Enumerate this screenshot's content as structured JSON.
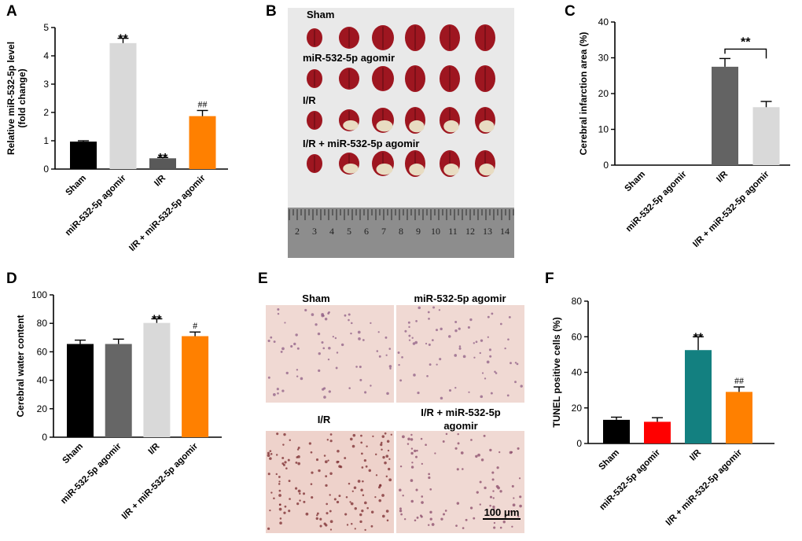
{
  "chart_data": [
    {
      "panel": "A",
      "type": "bar",
      "ylabel": "Relative miR-532-5p level\n(fold change)",
      "ylim": [
        0,
        5
      ],
      "yticks": [
        0,
        1,
        2,
        3,
        4,
        5
      ],
      "categories": [
        "Sham",
        "miR-532-5p agomir",
        "I/R",
        "I/R + miR-532-5p agomir"
      ],
      "values": [
        0.97,
        4.45,
        0.38,
        1.87
      ],
      "errors": [
        0.03,
        0.17,
        0.03,
        0.2
      ],
      "colors": [
        "#000000",
        "#d9d9d9",
        "#595959",
        "#ff8000"
      ],
      "annotations": [
        "",
        "**",
        "**",
        "##"
      ]
    },
    {
      "panel": "C",
      "type": "bar",
      "ylabel": "Cerebral infarction area (%)",
      "ylim": [
        0,
        40
      ],
      "yticks": [
        0,
        10,
        20,
        30,
        40
      ],
      "categories": [
        "Sham",
        "miR-532-5p agomir",
        "I/R",
        "I/R + miR-532-5p agomir"
      ],
      "values": [
        0,
        0,
        27.5,
        16.2
      ],
      "errors": [
        0,
        0,
        2.3,
        1.6
      ],
      "colors": [
        "#000000",
        "#595959",
        "#636363",
        "#d9d9d9"
      ],
      "annotations": [
        "",
        "",
        "",
        ""
      ],
      "bracket": {
        "from": 2,
        "to": 3,
        "text": "**"
      }
    },
    {
      "panel": "D",
      "type": "bar",
      "ylabel": "Cerebral water content",
      "ylim": [
        0,
        100
      ],
      "yticks": [
        0,
        20,
        40,
        60,
        80,
        100
      ],
      "categories": [
        "Sham",
        "miR-532-5p agomir",
        "I/R",
        "I/R + miR-532-5p agomir"
      ],
      "values": [
        65.5,
        65.5,
        80.3,
        71
      ],
      "errors": [
        2.7,
        3.4,
        2.9,
        2.9
      ],
      "colors": [
        "#000000",
        "#666666",
        "#d9d9d9",
        "#ff8000"
      ],
      "annotations": [
        "",
        "",
        "**",
        "#"
      ]
    },
    {
      "panel": "F",
      "type": "bar",
      "ylabel": "TUNEL positive cells (%)",
      "ylim": [
        0,
        80
      ],
      "yticks": [
        0,
        20,
        40,
        60,
        80
      ],
      "categories": [
        "Sham",
        "miR-532-5p agomir",
        "I/R",
        "I/R + miR-532-5p agomir"
      ],
      "values": [
        13.3,
        12.2,
        52.5,
        29
      ],
      "errors": [
        1.5,
        2.3,
        7.5,
        2.8
      ],
      "colors": [
        "#000000",
        "#ff0000",
        "#138080",
        "#ff8000"
      ],
      "annotations": [
        "",
        "",
        "**",
        "##"
      ]
    }
  ],
  "panels": {
    "a": "A",
    "b": "B",
    "c": "C",
    "d": "D",
    "e": "E",
    "f": "F"
  },
  "photo_b": {
    "rows": [
      "Sham",
      "miR-532-5p agomir",
      "I/R",
      "I/R + miR-532-5p agomir"
    ],
    "ruler_numbers": [
      "2",
      "3",
      "4",
      "5",
      "6",
      "7",
      "8",
      "9",
      "10",
      "11",
      "12",
      "13",
      "14"
    ],
    "colors": {
      "background": "#e9e9e9",
      "tissue": "#a01520",
      "ruler": "#8d8d8d"
    }
  },
  "photo_e": {
    "labels": [
      "Sham",
      "miR-532-5p agomir",
      "I/R",
      "I/R + miR-532-5p",
      "agomir"
    ],
    "scale_bar": "100 μm",
    "colors": {
      "background": "#f0d9d3",
      "nuclei": "#9a5a7a"
    }
  }
}
